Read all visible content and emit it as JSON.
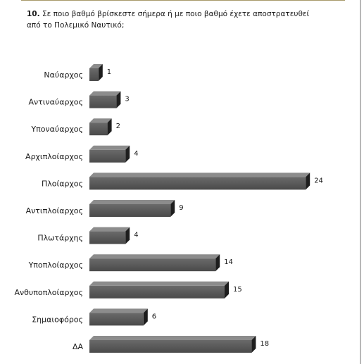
{
  "question": {
    "number": "10.",
    "text": "Σε ποιο βαθμό βρίσκεστε σήμερα ή με ποιο βαθμό έχετε αποστρατευθεί από το Πολεμικό Ναυτικό;"
  },
  "chart_data": {
    "type": "bar",
    "orientation": "horizontal",
    "title": "",
    "xlabel": "",
    "ylabel": "",
    "xlim": [
      0,
      24
    ],
    "grid": false,
    "legend": "none",
    "bar_color": "#565656",
    "categories": [
      "Ναύαρχος",
      "Αντιναύαρχος",
      "Υποναύαρχος",
      "Αρχιπλοίαρχος",
      "Πλοίαρχος",
      "Αντιπλοίαρχος",
      "Πλωτάρχης",
      "Υποπλοίαρχος",
      "Ανθυποπλοίαρχος",
      "Σημαιοφόρος",
      "ΔΑ"
    ],
    "values": [
      1,
      3,
      2,
      4,
      24,
      9,
      4,
      14,
      15,
      6,
      18
    ]
  }
}
